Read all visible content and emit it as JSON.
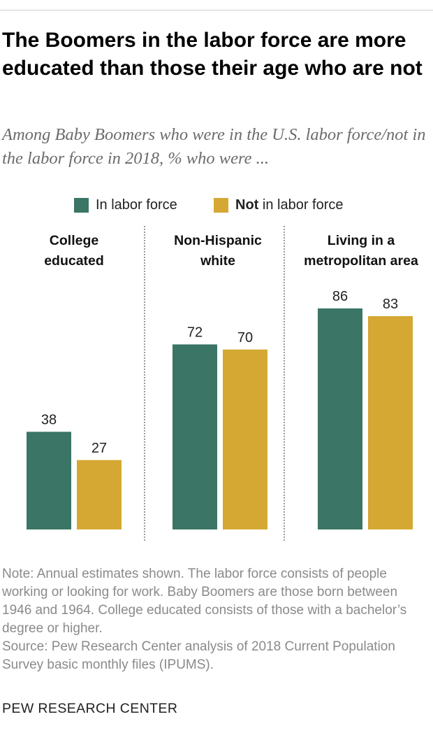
{
  "title": "The Boomers in the labor force are more educated than those their age who are not",
  "subtitle": "Among Baby Boomers who were in the U.S. labor force/not in the labor force in 2018, % who were ...",
  "legend": {
    "in_label": "In labor force",
    "out_bold": "Not",
    "out_rest": " in labor force"
  },
  "colors": {
    "in_labor_force": "#3a7566",
    "not_in_labor_force": "#d4a832"
  },
  "chart_data": {
    "type": "bar",
    "categories": [
      "College educated",
      "Non-Hispanic white",
      "Living in a metropolitan area"
    ],
    "category_lines": [
      [
        "College",
        "educated"
      ],
      [
        "Non-Hispanic",
        "white"
      ],
      [
        "Living in a",
        "metropolitan area"
      ]
    ],
    "series": [
      {
        "name": "In labor force",
        "values": [
          38,
          72,
          86
        ]
      },
      {
        "name": "Not in labor force",
        "values": [
          27,
          70,
          83
        ]
      }
    ],
    "ylim": [
      0,
      100
    ],
    "grid": false,
    "legend_position": "top-center"
  },
  "note": "Note: Annual estimates shown. The labor force consists of people working or looking for work. Baby Boomers are those born between 1946 and 1964. College educated consists of those with a bachelor’s degree or higher.",
  "source": "Source: Pew Research Center analysis of 2018 Current Population Survey basic monthly files (IPUMS).",
  "org": "PEW RESEARCH CENTER"
}
